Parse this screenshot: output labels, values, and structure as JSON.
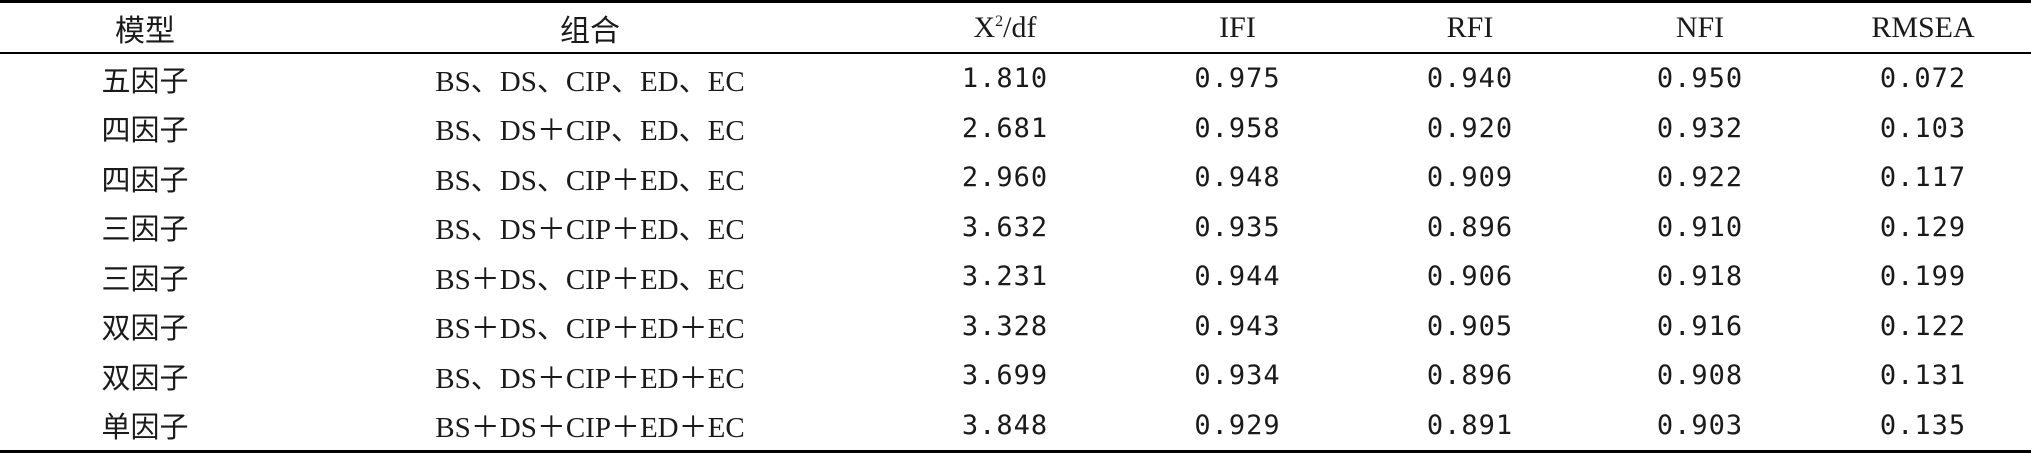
{
  "table": {
    "headers": {
      "model": "模型",
      "combination": "组合",
      "chi_base": "X",
      "chi_sup": "2",
      "chi_tail": "/df",
      "ifi": "IFI",
      "rfi": "RFI",
      "nfi": "NFI",
      "rmsea": "RMSEA"
    },
    "rows": [
      {
        "model": "五因子",
        "combination": "BS、DS、CIP、ED、EC",
        "chi_df": "1.810",
        "ifi": "0.975",
        "rfi": "0.940",
        "nfi": "0.950",
        "rmsea": "0.072"
      },
      {
        "model": "四因子",
        "combination": "BS、DS＋CIP、ED、EC",
        "chi_df": "2.681",
        "ifi": "0.958",
        "rfi": "0.920",
        "nfi": "0.932",
        "rmsea": "0.103"
      },
      {
        "model": "四因子",
        "combination": "BS、DS、CIP＋ED、EC",
        "chi_df": "2.960",
        "ifi": "0.948",
        "rfi": "0.909",
        "nfi": "0.922",
        "rmsea": "0.117"
      },
      {
        "model": "三因子",
        "combination": "BS、DS＋CIP＋ED、EC",
        "chi_df": "3.632",
        "ifi": "0.935",
        "rfi": "0.896",
        "nfi": "0.910",
        "rmsea": "0.129"
      },
      {
        "model": "三因子",
        "combination": "BS＋DS、CIP＋ED、EC",
        "chi_df": "3.231",
        "ifi": "0.944",
        "rfi": "0.906",
        "nfi": "0.918",
        "rmsea": "0.199"
      },
      {
        "model": "双因子",
        "combination": "BS＋DS、CIP＋ED＋EC",
        "chi_df": "3.328",
        "ifi": "0.943",
        "rfi": "0.905",
        "nfi": "0.916",
        "rmsea": "0.122"
      },
      {
        "model": "双因子",
        "combination": "BS、DS＋CIP＋ED＋EC",
        "chi_df": "3.699",
        "ifi": "0.934",
        "rfi": "0.896",
        "nfi": "0.908",
        "rmsea": "0.131"
      },
      {
        "model": "单因子",
        "combination": "BS＋DS＋CIP＋ED＋EC",
        "chi_df": "3.848",
        "ifi": "0.929",
        "rfi": "0.891",
        "nfi": "0.903",
        "rmsea": "0.135"
      }
    ]
  }
}
